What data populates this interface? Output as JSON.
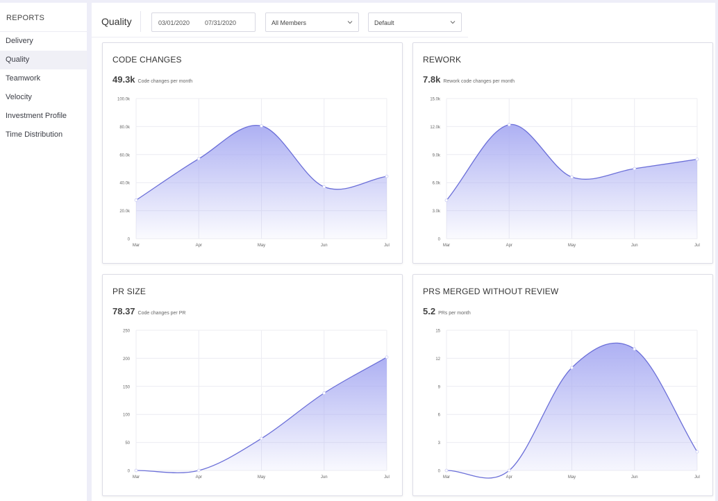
{
  "sidebar": {
    "title": "REPORTS",
    "items": [
      {
        "label": "Delivery",
        "active": false
      },
      {
        "label": "Quality",
        "active": true
      },
      {
        "label": "Teamwork",
        "active": false
      },
      {
        "label": "Velocity",
        "active": false
      },
      {
        "label": "Investment Profile",
        "active": false
      },
      {
        "label": "Time Distribution",
        "active": false
      }
    ]
  },
  "toolbar": {
    "page_title": "Quality",
    "date_start": "03/01/2020",
    "date_end": "07/31/2020",
    "members_select": "All Members",
    "view_select": "Default"
  },
  "colors": {
    "accent": "#6b6fd8",
    "fill_top": "#a9acf2",
    "grid": "#ececf2"
  },
  "chart_data": [
    {
      "type": "area",
      "title": "CODE CHANGES",
      "metric": "49.3k",
      "metric_label": "Code changes per month",
      "categories": [
        "Mar",
        "Apr",
        "May",
        "Jun",
        "Jul"
      ],
      "values": [
        27.5,
        57,
        80.5,
        37,
        44.5
      ],
      "ylim": [
        0,
        100
      ],
      "yticks": [
        "0",
        "20.0k",
        "40.0k",
        "60.0k",
        "80.0k",
        "100.0k"
      ]
    },
    {
      "type": "area",
      "title": "REWORK",
      "metric": "7.8k",
      "metric_label": "Rework code changes per month",
      "categories": [
        "Mar",
        "Apr",
        "May",
        "Jun",
        "Jul"
      ],
      "values": [
        4.1,
        12.2,
        6.6,
        7.5,
        8.5
      ],
      "ylim": [
        0,
        15
      ],
      "yticks": [
        "0",
        "3.0k",
        "6.0k",
        "9.0k",
        "12.0k",
        "15.0k"
      ]
    },
    {
      "type": "area",
      "title": "PR SIZE",
      "metric": "78.37",
      "metric_label": "Code changes per PR",
      "categories": [
        "Mar",
        "Apr",
        "May",
        "Jun",
        "Jul"
      ],
      "values": [
        0,
        0,
        57,
        138,
        202
      ],
      "ylim": [
        0,
        250
      ],
      "yticks": [
        "0",
        "50",
        "100",
        "150",
        "200",
        "250"
      ]
    },
    {
      "type": "area",
      "title": "PRS MERGED WITHOUT REVIEW",
      "metric": "5.2",
      "metric_label": "PRs per month",
      "categories": [
        "Mar",
        "Apr",
        "May",
        "Jun",
        "Jul"
      ],
      "values": [
        0,
        0,
        11,
        13,
        2
      ],
      "ylim": [
        0,
        15
      ],
      "yticks": [
        "0",
        "3",
        "6",
        "9",
        "12",
        "15"
      ]
    }
  ]
}
